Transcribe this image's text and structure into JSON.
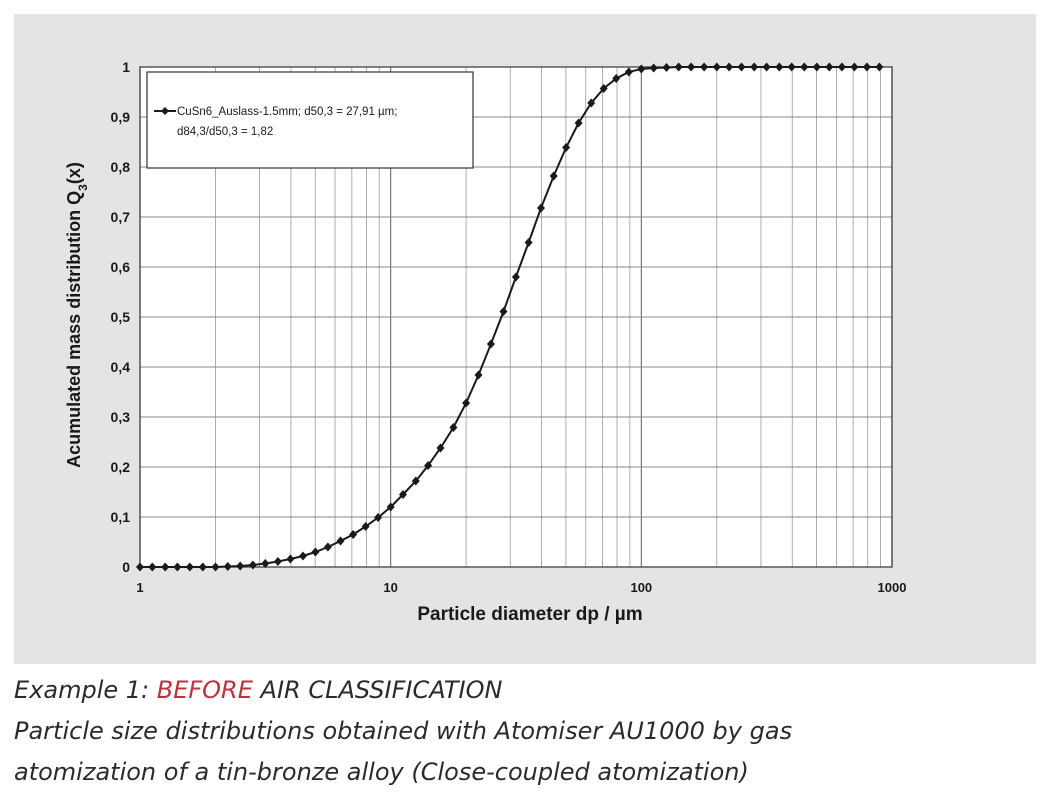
{
  "chart_data": {
    "type": "line",
    "xscale": "log",
    "xlim": [
      1,
      1000
    ],
    "ylim": [
      0,
      1
    ],
    "grid": true,
    "legend_position": "top-left",
    "xlabel": "Particle diameter dp / µm",
    "ylabel_main": "Acumulated mass distribution Q",
    "ylabel_sub": "3",
    "ylabel_end": "(x)",
    "x_ticks": [
      1,
      10,
      100,
      1000
    ],
    "x_tick_labels": [
      "1",
      "10",
      "100",
      "1000"
    ],
    "y_ticks": [
      0,
      0.1,
      0.2,
      0.3,
      0.4,
      0.5,
      0.6,
      0.7,
      0.8,
      0.9,
      1
    ],
    "y_tick_labels": [
      "0",
      "0,1",
      "0,2",
      "0,3",
      "0,4",
      "0,5",
      "0,6",
      "0,7",
      "0,8",
      "0,9",
      "1"
    ],
    "series": [
      {
        "name": "CuSn6_Auslass-1.5mm; d50,3 = 27,91 µm;",
        "name_line2": "d84,3/d50,3 = 1,82",
        "color": "#1a1a1a",
        "marker": "diamond",
        "x": [
          1,
          1.12,
          1.26,
          1.41,
          1.58,
          1.78,
          2,
          2.24,
          2.51,
          2.82,
          3.16,
          3.55,
          3.98,
          4.47,
          5.01,
          5.62,
          6.31,
          7.08,
          7.94,
          8.91,
          10,
          11.2,
          12.6,
          14.1,
          15.8,
          17.8,
          20,
          22.4,
          25.1,
          28.2,
          31.6,
          35.5,
          39.8,
          44.7,
          50.1,
          56.2,
          63.1,
          70.8,
          79.4,
          89.1,
          100,
          112,
          126,
          141,
          158,
          178,
          200,
          224,
          251,
          282,
          316,
          355,
          398,
          447,
          501,
          562,
          631,
          708,
          794,
          891
        ],
        "y": [
          0,
          0,
          0,
          0,
          0,
          0,
          0,
          0.001,
          0.002,
          0.004,
          0.007,
          0.011,
          0.016,
          0.022,
          0.03,
          0.04,
          0.052,
          0.065,
          0.081,
          0.099,
          0.12,
          0.145,
          0.172,
          0.203,
          0.238,
          0.279,
          0.328,
          0.384,
          0.446,
          0.511,
          0.58,
          0.649,
          0.718,
          0.782,
          0.839,
          0.888,
          0.928,
          0.957,
          0.977,
          0.99,
          0.996,
          0.998,
          0.999,
          1,
          1,
          1,
          1,
          1,
          1,
          1,
          1,
          1,
          1,
          1,
          1,
          1,
          1,
          1,
          1,
          1
        ]
      }
    ]
  },
  "caption": {
    "line1_prefix": "Example 1: ",
    "line1_accent": "BEFORE",
    "line1_suffix": " AIR CLASSIFICATION",
    "line2": "Particle size distributions obtained with Atomiser AU1000 by gas",
    "line3": "atomization of a tin-bronze alloy (Close-coupled atomization)"
  }
}
